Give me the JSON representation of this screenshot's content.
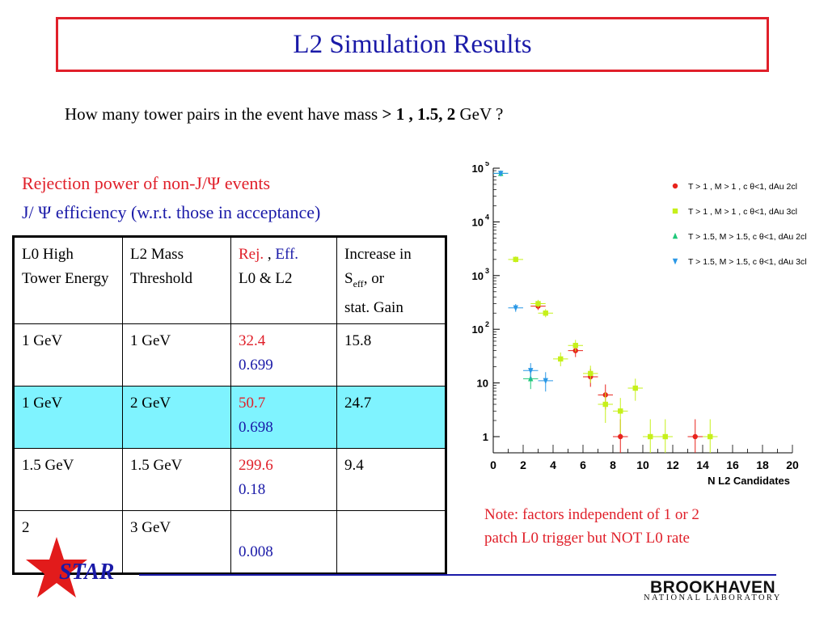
{
  "slide": {
    "title": "L2 Simulation Results",
    "question": {
      "pre": "How many tower pairs in the event have mass ",
      "values": "> 1 , 1.5,  2 ",
      "post": " GeV ?"
    },
    "rejection_heading": "Rejection power of non-J/Ψ events",
    "efficiency_heading": "J/ Ψ efficiency (w.r.t. those in acceptance)",
    "note_line1": "Note: factors independent of 1 or 2",
    "note_line2": "patch L0 trigger but NOT L0 rate"
  },
  "table": {
    "header": {
      "col0": "L0 High Tower Energy",
      "col1": "L2 Mass Threshold",
      "col2_rej": "Rej.",
      "col2_sep": " , ",
      "col2_eff": "Eff.",
      "col2_sub": "L0 & L2",
      "col3_line1": "Increase in",
      "col3_s": "S",
      "col3_sub": "eff",
      "col3_rest": ", or",
      "col3_line3": "stat. Gain"
    },
    "rows": [
      {
        "l0": "1 GeV",
        "l2": "1 GeV",
        "rej": "32.4",
        "eff": "0.699",
        "gain": "15.8"
      },
      {
        "l0": "1 GeV",
        "l2": "2 GeV",
        "rej": "50.7",
        "eff": "0.698",
        "gain": "24.7"
      },
      {
        "l0": "1.5 GeV",
        "l2": "1.5 GeV",
        "rej": "299.6",
        "eff": "0.18",
        "gain": "9.4"
      },
      {
        "l0": "2",
        "l2": "3 GeV",
        "rej": "",
        "eff": "0.008",
        "gain": ""
      }
    ],
    "highlight_color": "#7ff3ff"
  },
  "chart_data": {
    "type": "scatter",
    "xlabel": "N L2 Candidates",
    "ylabel": "",
    "xlim": [
      0,
      20
    ],
    "ylim": [
      0.5,
      100000
    ],
    "yscale": "log",
    "x_ticks": [
      "0",
      "2",
      "4",
      "6",
      "8",
      "10",
      "12",
      "14",
      "16",
      "18",
      "20"
    ],
    "y_ticks": [
      {
        "value": 1,
        "base": "1",
        "exp": ""
      },
      {
        "value": 10,
        "base": "10",
        "exp": ""
      },
      {
        "value": 100,
        "base": "10",
        "exp": "2"
      },
      {
        "value": 1000,
        "base": "10",
        "exp": "3"
      },
      {
        "value": 10000,
        "base": "10",
        "exp": "4"
      },
      {
        "value": 100000,
        "base": "10",
        "exp": "5"
      }
    ],
    "legend_position": "top-right",
    "series": [
      {
        "name": "T > 1  , M > 1  , c θ<1, dAu 2cl",
        "color": "#e8231c",
        "marker": "circle",
        "x": [
          3.0,
          5.5,
          6.5,
          7.5,
          8.5,
          13.5
        ],
        "y": [
          270,
          40,
          13,
          6,
          1,
          1
        ]
      },
      {
        "name": "T > 1  , M > 1  , c θ<1, dAu 3cl",
        "color": "#c6f01a",
        "marker": "square",
        "x": [
          1.5,
          3.0,
          3.5,
          4.5,
          5.5,
          6.5,
          7.5,
          8.5,
          9.5,
          10.5,
          11.5,
          14.5
        ],
        "y": [
          2000,
          300,
          200,
          28,
          50,
          15,
          4,
          3,
          8,
          1,
          1,
          1
        ]
      },
      {
        "name": "T > 1.5, M > 1.5, c θ<1, dAu 2cl",
        "color": "#20c87a",
        "marker": "triangle-up",
        "x": [
          0.5,
          2.5
        ],
        "y": [
          80000,
          12
        ]
      },
      {
        "name": "T > 1.5, M > 1.5, c θ<1, dAu 3cl",
        "color": "#2a98e6",
        "marker": "triangle-down",
        "x": [
          0.5,
          1.5,
          2.5,
          3.5
        ],
        "y": [
          80000,
          250,
          17,
          11
        ]
      }
    ]
  },
  "branding": {
    "star_text": "STAR",
    "star_color": "#e21b1b",
    "lab_name": "BROOKHAVEN",
    "lab_sub": "NATIONAL LABORATORY"
  }
}
